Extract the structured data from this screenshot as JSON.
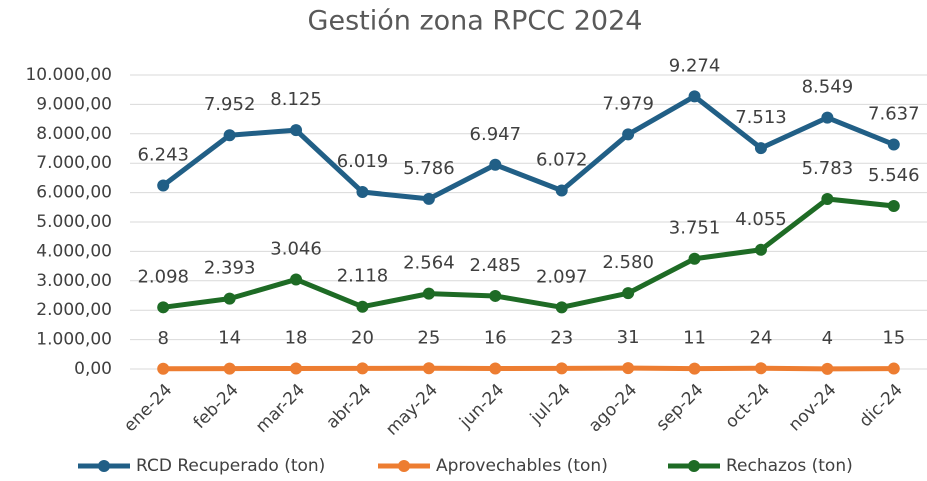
{
  "chart_data": {
    "type": "line",
    "title": "Gestión zona RPCC 2024",
    "categories": [
      "ene-24",
      "feb-24",
      "mar-24",
      "abr-24",
      "may-24",
      "jun-24",
      "jul-24",
      "ago-24",
      "sep-24",
      "oct-24",
      "nov-24",
      "dic-24"
    ],
    "series": [
      {
        "name": "RCD Recuperado (ton)",
        "color": "#215f86",
        "values": [
          6243,
          7952,
          8125,
          6019,
          5786,
          6947,
          6072,
          7979,
          9274,
          7513,
          8549,
          7637
        ],
        "value_labels": [
          "6.243",
          "7.952",
          "8.125",
          "6.019",
          "5.786",
          "6.947",
          "6.072",
          "7.979",
          "9.274",
          "7.513",
          "8.549",
          "7.637"
        ]
      },
      {
        "name": "Aprovechables (ton)",
        "color": "#ed7d31",
        "values": [
          8,
          14,
          18,
          20,
          25,
          16,
          23,
          31,
          11,
          24,
          4,
          15
        ]
      },
      {
        "name": "Rechazos (ton)",
        "color": "#1e6b25",
        "values": [
          2098,
          2393,
          3046,
          2118,
          2564,
          2485,
          2097,
          2580,
          3751,
          4055,
          5783,
          5546
        ],
        "value_labels": [
          "2.098",
          "2.393",
          "3.046",
          "2.118",
          "2.564",
          "2.485",
          "2.097",
          "2.580",
          "3.751",
          "4.055",
          "5.783",
          "5.546"
        ]
      }
    ],
    "ylim": [
      0,
      10000
    ],
    "yticks": [
      {
        "value": 0,
        "label": "0,00"
      },
      {
        "value": 1000,
        "label": "1.000,00"
      },
      {
        "value": 2000,
        "label": "2.000,00"
      },
      {
        "value": 3000,
        "label": "3.000,00"
      },
      {
        "value": 4000,
        "label": "4.000,00"
      },
      {
        "value": 5000,
        "label": "5.000,00"
      },
      {
        "value": 6000,
        "label": "6.000,00"
      },
      {
        "value": 7000,
        "label": "7.000,00"
      },
      {
        "value": 8000,
        "label": "8.000,00"
      },
      {
        "value": 9000,
        "label": "9.000,00"
      },
      {
        "value": 10000,
        "label": "10.000,00"
      }
    ],
    "grid": true,
    "legend": "bottom"
  }
}
